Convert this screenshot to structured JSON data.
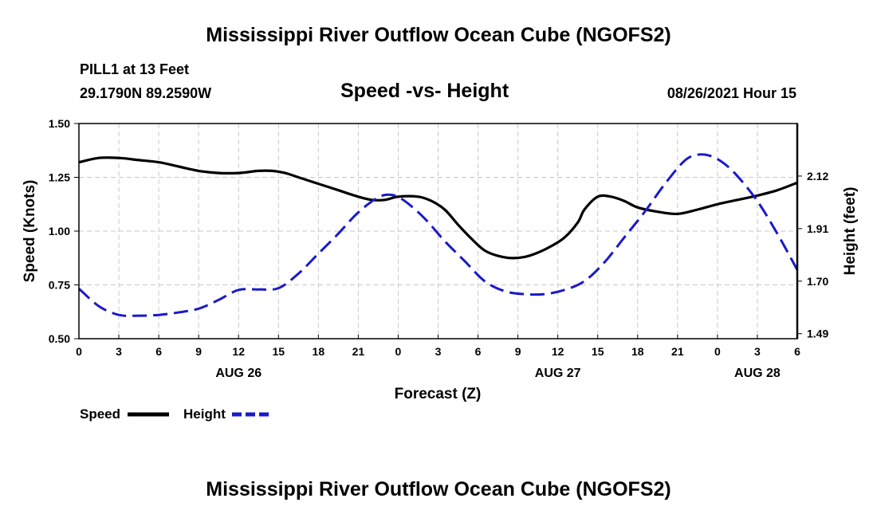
{
  "chart_data": {
    "type": "line",
    "title": "Mississippi River Outflow Ocean Cube (NGOFS2)",
    "footer_title": "Mississippi River Outflow Ocean Cube (NGOFS2)",
    "station": "PILL1 at 13 Feet",
    "location": "29.1790N  89.2590W",
    "subtitle": "Speed -vs- Height",
    "datetime": "08/26/2021 Hour 15",
    "xlabel": "Forecast (Z)",
    "ylabel": "Speed (Knots)",
    "y2label": "Height (feet)",
    "xlim": [
      0,
      54
    ],
    "ylim": [
      0.5,
      1.5
    ],
    "y2lim": [
      1.47,
      2.33
    ],
    "grid": true,
    "x_ticks": [
      {
        "x": 0,
        "label": "0"
      },
      {
        "x": 3,
        "label": "3"
      },
      {
        "x": 6,
        "label": "6"
      },
      {
        "x": 9,
        "label": "9"
      },
      {
        "x": 12,
        "label": "12"
      },
      {
        "x": 15,
        "label": "15"
      },
      {
        "x": 18,
        "label": "18"
      },
      {
        "x": 21,
        "label": "21"
      },
      {
        "x": 24,
        "label": "0"
      },
      {
        "x": 27,
        "label": "3"
      },
      {
        "x": 30,
        "label": "6"
      },
      {
        "x": 33,
        "label": "9"
      },
      {
        "x": 36,
        "label": "12"
      },
      {
        "x": 39,
        "label": "15"
      },
      {
        "x": 42,
        "label": "18"
      },
      {
        "x": 45,
        "label": "21"
      },
      {
        "x": 48,
        "label": "0"
      },
      {
        "x": 51,
        "label": "3"
      },
      {
        "x": 54,
        "label": "6"
      }
    ],
    "day_labels": [
      {
        "x": 12,
        "label": "AUG 26"
      },
      {
        "x": 36,
        "label": "AUG 27"
      },
      {
        "x": 51,
        "label": "AUG 28"
      }
    ],
    "y_ticks": [
      {
        "v": 0.5,
        "label": "0.50"
      },
      {
        "v": 0.75,
        "label": "0.75"
      },
      {
        "v": 1.0,
        "label": "1.00"
      },
      {
        "v": 1.25,
        "label": "1.25"
      },
      {
        "v": 1.5,
        "label": "1.50"
      }
    ],
    "y2_ticks": [
      {
        "v": 1.49,
        "label": "1.49"
      },
      {
        "v": 1.7,
        "label": "1.70"
      },
      {
        "v": 1.91,
        "label": "1.91"
      },
      {
        "v": 2.12,
        "label": "2.12"
      }
    ],
    "series": [
      {
        "name": "Speed",
        "axis": "left",
        "color": "#000000",
        "dash": "solid",
        "x": [
          0,
          1.5,
          3,
          4.5,
          6,
          7.5,
          9,
          10.5,
          12,
          13.5,
          14.5,
          15.5,
          16.5,
          18,
          19.5,
          21,
          22,
          23,
          24,
          25.5,
          26.5,
          27.5,
          28.5,
          29.5,
          30.5,
          31.5,
          32.5,
          33.5,
          34.5,
          35.5,
          36.5,
          37.5,
          38,
          39,
          40,
          41,
          42,
          43.5,
          45,
          46.5,
          48,
          49.5,
          51,
          52.5,
          54
        ],
        "y": [
          1.32,
          1.34,
          1.34,
          1.33,
          1.32,
          1.3,
          1.28,
          1.27,
          1.27,
          1.28,
          1.28,
          1.27,
          1.25,
          1.22,
          1.19,
          1.16,
          1.145,
          1.145,
          1.16,
          1.16,
          1.14,
          1.1,
          1.03,
          0.965,
          0.91,
          0.885,
          0.875,
          0.88,
          0.9,
          0.93,
          0.97,
          1.04,
          1.1,
          1.16,
          1.16,
          1.14,
          1.11,
          1.09,
          1.08,
          1.1,
          1.125,
          1.145,
          1.165,
          1.19,
          1.225
        ]
      },
      {
        "name": "Height",
        "axis": "right",
        "color": "#1a1ac8",
        "dash": "dashed",
        "x": [
          0,
          1.5,
          3,
          4.5,
          6,
          7.5,
          9,
          10.5,
          12,
          13.5,
          15,
          16.5,
          18,
          19.5,
          21,
          22.5,
          23.5,
          24.5,
          26,
          27.5,
          29,
          30.5,
          32,
          33.5,
          35,
          36.5,
          38,
          39.5,
          41,
          42.5,
          44,
          45.5,
          46.5,
          47.5,
          48.5,
          49.5,
          51,
          52.5,
          54
        ],
        "y": [
          1.67,
          1.6,
          1.565,
          1.562,
          1.565,
          1.575,
          1.59,
          1.625,
          1.665,
          1.667,
          1.672,
          1.73,
          1.81,
          1.89,
          1.975,
          2.035,
          2.045,
          2.02,
          1.95,
          1.86,
          1.78,
          1.7,
          1.66,
          1.648,
          1.648,
          1.665,
          1.7,
          1.775,
          1.875,
          1.975,
          2.085,
          2.18,
          2.205,
          2.2,
          2.17,
          2.12,
          2.02,
          1.89,
          1.745
        ]
      }
    ],
    "legend": [
      {
        "label": "Speed",
        "color": "#000000",
        "dash": "solid"
      },
      {
        "label": "Height",
        "color": "#1a1ac8",
        "dash": "dashed"
      }
    ],
    "legend_position": "bottom-left"
  }
}
